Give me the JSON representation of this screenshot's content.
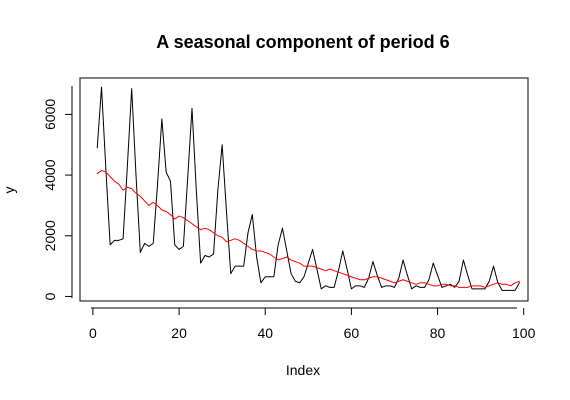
{
  "chart_data": {
    "type": "line",
    "title": "A seasonal component of period 6",
    "xlabel": "Index",
    "ylabel": "y",
    "xlim": [
      -3,
      101
    ],
    "ylim": [
      -150,
      7200
    ],
    "xticks": [
      0,
      20,
      40,
      60,
      80,
      100
    ],
    "yticks": [
      0,
      2000,
      4000,
      6000
    ],
    "grid": false,
    "legend": "none",
    "series": [
      {
        "color": "#000000",
        "x": [
          1,
          2,
          3,
          4,
          5,
          6,
          7,
          8,
          9,
          10,
          11,
          12,
          13,
          14,
          15,
          16,
          17,
          18,
          19,
          20,
          21,
          22,
          23,
          24,
          25,
          26,
          27,
          28,
          29,
          30,
          31,
          32,
          33,
          34,
          35,
          36,
          37,
          38,
          39,
          40,
          41,
          42,
          43,
          44,
          45,
          46,
          47,
          48,
          49,
          50,
          51,
          52,
          53,
          54,
          55,
          56,
          57,
          58,
          59,
          60,
          61,
          62,
          63,
          64,
          65,
          66,
          67,
          68,
          69,
          70,
          71,
          72,
          73,
          74,
          75,
          76,
          77,
          78,
          79,
          80,
          81,
          82,
          83,
          84,
          85,
          86,
          87,
          88,
          89,
          90,
          91,
          92,
          93,
          94,
          95,
          96,
          97,
          98,
          99
        ],
        "y": [
          4900,
          6900,
          4200,
          1700,
          1850,
          1850,
          1900,
          4300,
          6850,
          4000,
          1450,
          1750,
          1650,
          1750,
          3700,
          5850,
          4100,
          3800,
          1700,
          1550,
          1650,
          3900,
          6200,
          3500,
          1100,
          1350,
          1300,
          1400,
          3500,
          5000,
          2800,
          750,
          1000,
          1000,
          1000,
          2100,
          2700,
          1300,
          450,
          650,
          650,
          650,
          1700,
          2250,
          1500,
          750,
          500,
          450,
          650,
          1100,
          1550,
          900,
          250,
          350,
          300,
          300,
          850,
          1500,
          900,
          250,
          350,
          350,
          300,
          600,
          1150,
          700,
          300,
          350,
          350,
          300,
          600,
          1200,
          700,
          250,
          350,
          300,
          300,
          550,
          1100,
          700,
          300,
          350,
          400,
          300,
          500,
          1200,
          700,
          250,
          250,
          250,
          250,
          500,
          1000,
          450,
          200,
          200,
          200,
          200,
          450
        ]
      },
      {
        "color": "#ff0000",
        "x": [
          1,
          2,
          3,
          4,
          5,
          6,
          7,
          8,
          9,
          10,
          11,
          12,
          13,
          14,
          15,
          16,
          17,
          18,
          19,
          20,
          21,
          22,
          23,
          24,
          25,
          26,
          27,
          28,
          29,
          30,
          31,
          32,
          33,
          34,
          35,
          36,
          37,
          38,
          39,
          40,
          41,
          42,
          43,
          44,
          45,
          46,
          47,
          48,
          49,
          50,
          51,
          52,
          53,
          54,
          55,
          56,
          57,
          58,
          59,
          60,
          61,
          62,
          63,
          64,
          65,
          66,
          67,
          68,
          69,
          70,
          71,
          72,
          73,
          74,
          75,
          76,
          77,
          78,
          79,
          80,
          81,
          82,
          83,
          84,
          85,
          86,
          87,
          88,
          89,
          90,
          91,
          92,
          93,
          94,
          95,
          96,
          97,
          98,
          99
        ],
        "y": [
          4050,
          4150,
          4100,
          3950,
          3800,
          3700,
          3500,
          3600,
          3550,
          3400,
          3300,
          3150,
          3000,
          3100,
          3000,
          2850,
          2800,
          2700,
          2550,
          2650,
          2600,
          2500,
          2400,
          2300,
          2200,
          2250,
          2200,
          2100,
          2000,
          1950,
          1800,
          1850,
          1900,
          1850,
          1750,
          1650,
          1550,
          1500,
          1500,
          1450,
          1400,
          1300,
          1200,
          1250,
          1300,
          1200,
          1150,
          1100,
          1000,
          1000,
          1000,
          950,
          900,
          850,
          900,
          850,
          800,
          750,
          700,
          650,
          600,
          550,
          550,
          600,
          650,
          650,
          600,
          550,
          500,
          450,
          500,
          550,
          500,
          450,
          400,
          450,
          450,
          400,
          350,
          350,
          400,
          400,
          350,
          350,
          300,
          300,
          300,
          350,
          350,
          350,
          300,
          350,
          400,
          450,
          400,
          400,
          350,
          450,
          500
        ]
      }
    ]
  }
}
